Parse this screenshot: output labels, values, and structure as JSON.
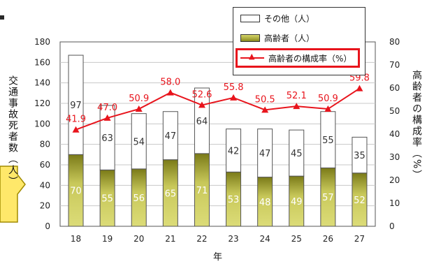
{
  "chart_data": {
    "type": "bar+line",
    "categories": [
      "18",
      "19",
      "20",
      "21",
      "22",
      "23",
      "24",
      "25",
      "26",
      "27"
    ],
    "series": [
      {
        "name": "その他（人）",
        "values": [
          97,
          63,
          54,
          47,
          64,
          42,
          47,
          45,
          55,
          35
        ],
        "kind": "bar",
        "color": "#ffffff"
      },
      {
        "name": "高齢者（人）",
        "values": [
          70,
          55,
          56,
          65,
          71,
          53,
          48,
          49,
          57,
          52
        ],
        "kind": "bar",
        "color": "#8a8a1e"
      },
      {
        "name": "高齢者の構成率（%）",
        "values": [
          41.9,
          47.0,
          50.9,
          58.0,
          52.6,
          55.8,
          50.5,
          52.1,
          50.9,
          59.8
        ],
        "kind": "line",
        "axis": "right",
        "color": "#e8141c"
      }
    ],
    "xlabel": "年",
    "ylabel_left": "交通事故死者数（人）",
    "ylabel_right": "高齢者の構成率（%）",
    "ylim_left": [
      0,
      180
    ],
    "yticks_left": [
      0,
      20,
      40,
      60,
      80,
      100,
      120,
      140,
      160,
      180
    ],
    "ylim_right": [
      0,
      80
    ],
    "yticks_right": [
      0,
      10,
      20,
      30,
      40,
      50,
      60,
      70,
      80
    ],
    "grid": true,
    "legend_position": "top-right"
  },
  "legend": {
    "other_label": "その他（人）",
    "elderly_label": "高齢者（人）",
    "rate_label": "高齢者の構成率（%）"
  }
}
